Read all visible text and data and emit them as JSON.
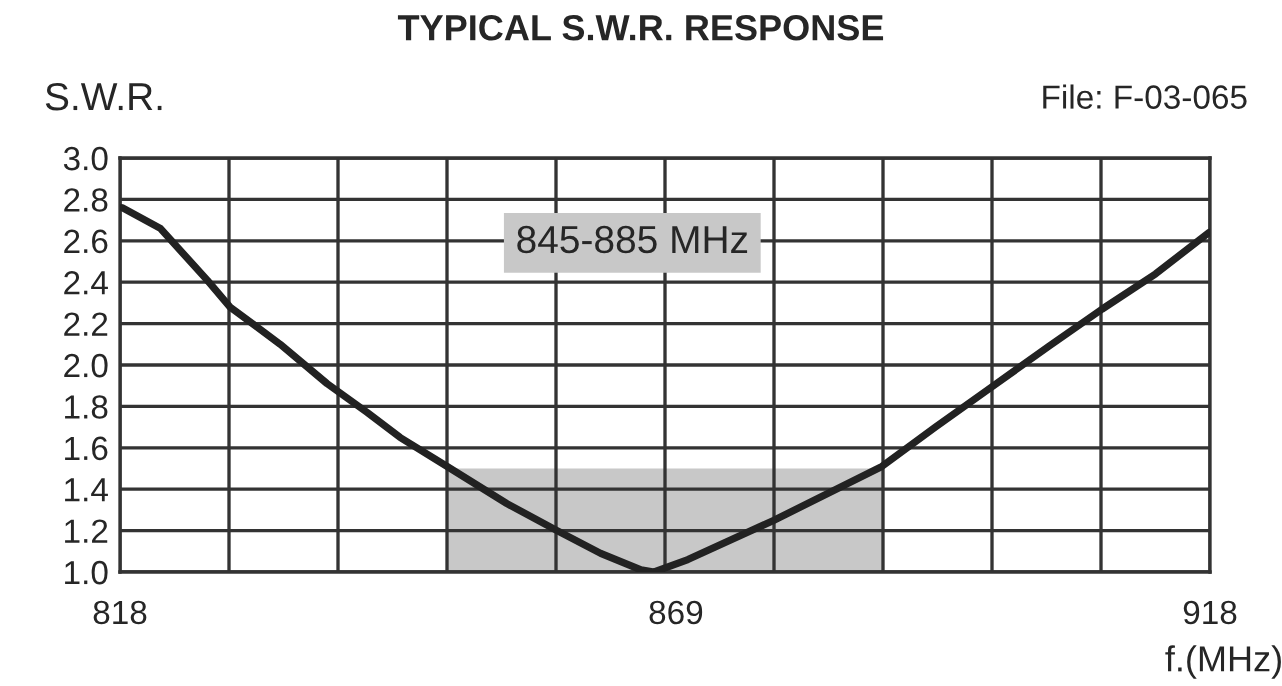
{
  "chart_data": {
    "type": "line",
    "title": "TYPICAL S.W.R. RESPONSE",
    "ylabel": "S.W.R.",
    "xlabel": "f.(MHz)",
    "annotations": [
      "File: F-03-065",
      "845-885 MHz"
    ],
    "series": [
      {
        "type": "area",
        "color": "#c8c8c8",
        "x": [
          848,
          888
        ],
        "values": [
          1.5,
          1.5
        ]
      },
      {
        "color": "#222222",
        "x": [
          818.2,
          821.7,
          826,
          828.1,
          832.7,
          837,
          840.7,
          843.7,
          848,
          853.5,
          858.1,
          862.1,
          865.8,
          867,
          870.1,
          878,
          887.9,
          892.8,
          897.6,
          903.2,
          908.1,
          913,
          917.9
        ],
        "values": [
          2.76,
          2.66,
          2.41,
          2.28,
          2.1,
          1.91,
          1.77,
          1.65,
          1.51,
          1.33,
          1.2,
          1.09,
          1.01,
          1.0,
          1.06,
          1.25,
          1.51,
          1.7,
          1.88,
          2.09,
          2.27,
          2.44,
          2.64
        ]
      }
    ],
    "xlim": [
      818,
      918
    ],
    "xticks": [
      818,
      {
        "value": 828,
        "label": null
      },
      {
        "value": 838,
        "label": null
      },
      {
        "value": 848,
        "label": null
      },
      {
        "value": 858,
        "label": null
      },
      {
        "value": 868,
        "label": null
      },
      869,
      {
        "value": 878,
        "label": null
      },
      {
        "value": 888,
        "label": null
      },
      {
        "value": 898,
        "label": null
      },
      {
        "value": 908,
        "label": null
      },
      918
    ],
    "ylim": [
      1.0,
      3.0
    ],
    "yticks": [
      {
        "value": 1.0,
        "label": "1.0"
      },
      1.2,
      1.4,
      1.6,
      1.8,
      {
        "value": 2.0,
        "label": "2.0"
      },
      2.2,
      2.4,
      2.6,
      2.8,
      {
        "value": 3.0,
        "label": "3.0"
      }
    ],
    "grid": true,
    "marker": "none",
    "line_style": "solid"
  }
}
